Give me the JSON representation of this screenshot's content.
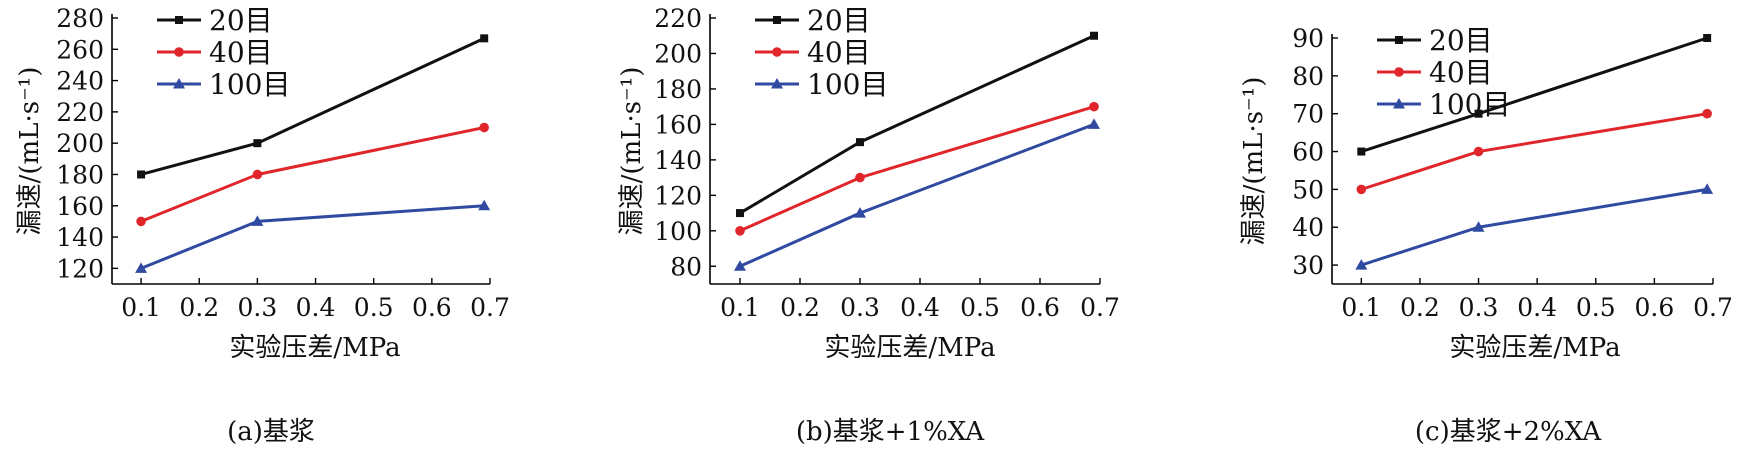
{
  "colors": {
    "20": "#111111",
    "40": "#e0262b",
    "100": "#2f4aa0"
  },
  "legend": [
    "20目",
    "40目",
    "100目"
  ],
  "chart_data": [
    {
      "type": "line",
      "caption": "(a)基浆",
      "xlabel": "实验压差/MPa",
      "ylabel": "漏速/(mL·s⁻¹)",
      "xticks": [
        "0.1",
        "0.2",
        "0.3",
        "0.4",
        "0.5",
        "0.6",
        "0.7"
      ],
      "xlim": [
        0.05,
        0.7
      ],
      "ylim": [
        110,
        280
      ],
      "yticks": [
        120,
        140,
        160,
        180,
        200,
        220,
        240,
        260,
        280
      ],
      "x": [
        0.1,
        0.3,
        0.69
      ],
      "series": [
        {
          "name": "20目",
          "marker": "square",
          "values": [
            180,
            200,
            267
          ]
        },
        {
          "name": "40目",
          "marker": "circle",
          "values": [
            150,
            180,
            210
          ]
        },
        {
          "name": "100目",
          "marker": "triangle",
          "values": [
            120,
            150,
            160
          ]
        }
      ]
    },
    {
      "type": "line",
      "caption": "(b)基浆+1%XA",
      "xlabel": "实验压差/MPa",
      "ylabel": "漏速/(mL·s⁻¹)",
      "xticks": [
        "0.1",
        "0.2",
        "0.3",
        "0.4",
        "0.5",
        "0.6",
        "0.7"
      ],
      "xlim": [
        0.05,
        0.7
      ],
      "ylim": [
        70,
        220
      ],
      "yticks": [
        80,
        100,
        120,
        140,
        160,
        180,
        200,
        220
      ],
      "x": [
        0.1,
        0.3,
        0.69
      ],
      "series": [
        {
          "name": "20目",
          "marker": "square",
          "values": [
            110,
            150,
            210
          ]
        },
        {
          "name": "40目",
          "marker": "circle",
          "values": [
            100,
            130,
            170
          ]
        },
        {
          "name": "100目",
          "marker": "triangle",
          "values": [
            80,
            110,
            160
          ]
        }
      ]
    },
    {
      "type": "line",
      "caption": "(c)基浆+2%XA",
      "xlabel": "实验压差/MPa",
      "ylabel": "漏速/(mL·s⁻¹)",
      "xticks": [
        "0.1",
        "0.2",
        "0.3",
        "0.4",
        "0.5",
        "0.6",
        "0.7"
      ],
      "xlim": [
        0.05,
        0.7
      ],
      "ylim": [
        25,
        90
      ],
      "yticks": [
        30,
        40,
        50,
        60,
        70,
        80,
        90
      ],
      "x": [
        0.1,
        0.3,
        0.69
      ],
      "series": [
        {
          "name": "20目",
          "marker": "square",
          "values": [
            60,
            70,
            90
          ]
        },
        {
          "name": "40目",
          "marker": "circle",
          "values": [
            50,
            60,
            70
          ]
        },
        {
          "name": "100目",
          "marker": "triangle",
          "values": [
            30,
            40,
            50
          ]
        }
      ]
    }
  ]
}
